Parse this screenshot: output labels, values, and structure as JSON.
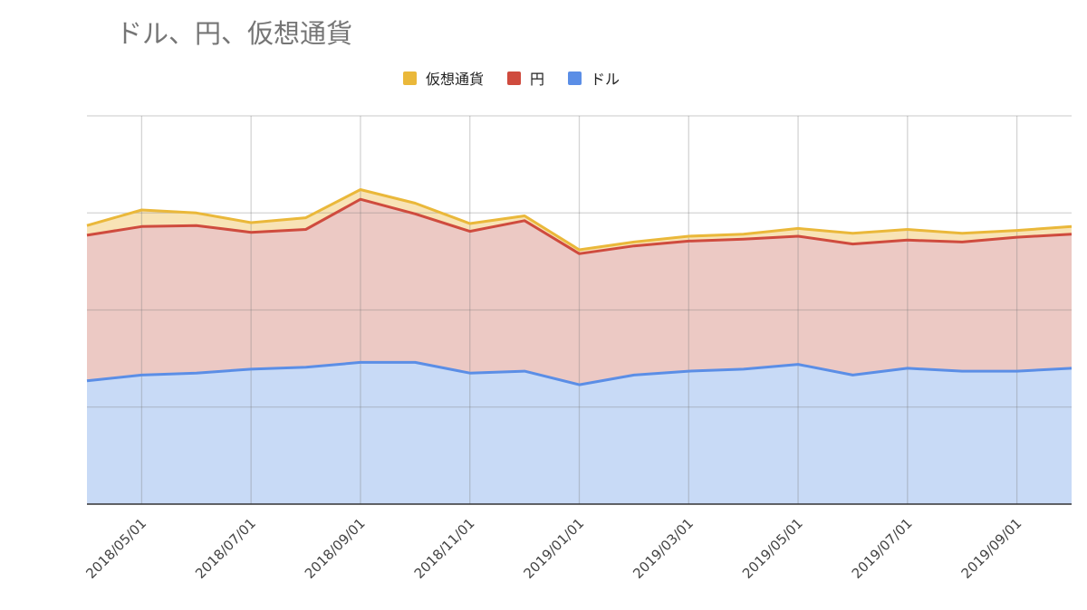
{
  "chart_data": {
    "type": "area",
    "stacked": true,
    "title": "ドル、円、仮想通貨",
    "legend_position": "top",
    "grid": true,
    "x": [
      "2018/04/01",
      "2018/05/01",
      "2018/06/01",
      "2018/07/01",
      "2018/08/01",
      "2018/09/01",
      "2018/10/01",
      "2018/11/01",
      "2018/12/01",
      "2019/01/01",
      "2019/02/01",
      "2019/03/01",
      "2019/04/01",
      "2019/05/01",
      "2019/06/01",
      "2019/07/01",
      "2019/08/01",
      "2019/09/01",
      "2019/10/01"
    ],
    "x_tick_labels": [
      "2018/05/01",
      "2018/07/01",
      "2018/09/01",
      "2018/11/01",
      "2019/01/01",
      "2019/03/01",
      "2019/05/01",
      "2019/07/01",
      "2019/09/01"
    ],
    "ylim": [
      0,
      4
    ],
    "y_gridlines": [
      0,
      1,
      2,
      3,
      4
    ],
    "series": [
      {
        "name": "ドル",
        "color": "#5b8ee6",
        "fill": "#c8daf6",
        "values": [
          1.27,
          1.33,
          1.35,
          1.39,
          1.41,
          1.46,
          1.46,
          1.35,
          1.37,
          1.23,
          1.33,
          1.37,
          1.39,
          1.44,
          1.33,
          1.4,
          1.37,
          1.37,
          1.4
        ]
      },
      {
        "name": "円",
        "color": "#cf4b3e",
        "fill": "#ecc9c4",
        "values": [
          1.5,
          1.53,
          1.52,
          1.41,
          1.42,
          1.68,
          1.53,
          1.46,
          1.55,
          1.35,
          1.33,
          1.34,
          1.34,
          1.32,
          1.35,
          1.32,
          1.33,
          1.38,
          1.38
        ]
      },
      {
        "name": "仮想通貨",
        "color": "#eab83a",
        "fill": "#f8e3b6",
        "values": [
          0.1,
          0.17,
          0.13,
          0.1,
          0.12,
          0.1,
          0.11,
          0.08,
          0.05,
          0.04,
          0.04,
          0.05,
          0.05,
          0.08,
          0.11,
          0.11,
          0.09,
          0.07,
          0.08
        ]
      }
    ]
  }
}
